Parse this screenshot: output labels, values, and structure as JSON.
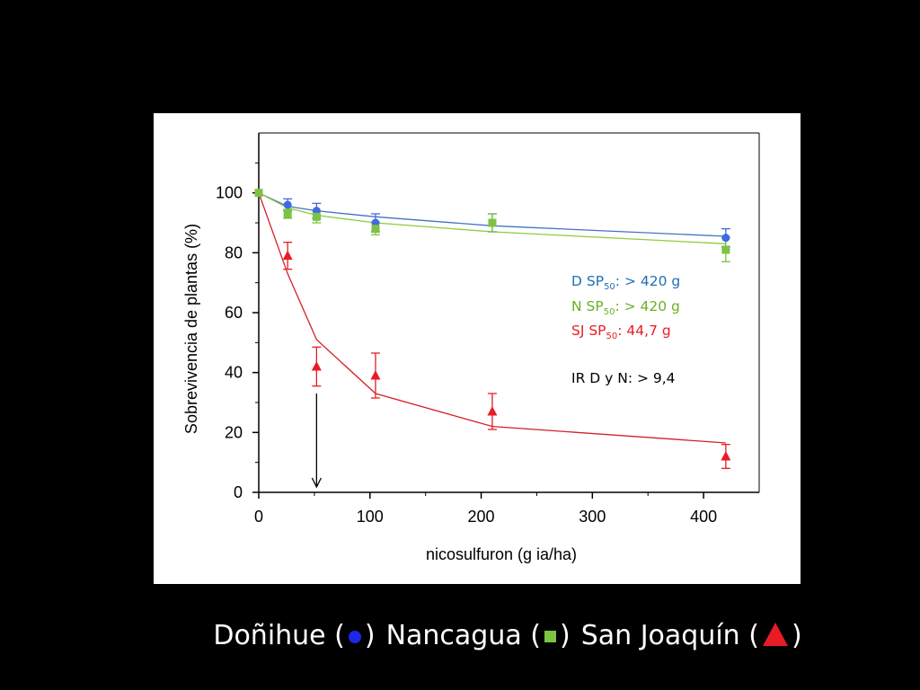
{
  "chart_data": {
    "type": "scatter",
    "title": "",
    "xlabel": "nicosulfuron (g ia/ha)",
    "ylabel": "Sobrevivencia de plantas (%)",
    "xlim": [
      0,
      450
    ],
    "ylim": [
      0,
      120
    ],
    "xticks": [
      0,
      100,
      200,
      300,
      400
    ],
    "yticks": [
      0,
      20,
      40,
      60,
      80,
      100
    ],
    "grid": false,
    "legend": "bottom",
    "series": [
      {
        "name": "Doñihue",
        "marker": "circle",
        "color": "#4169e1",
        "line_color": "#4472c4",
        "x": [
          0,
          26,
          52,
          105,
          210,
          420
        ],
        "y": [
          100,
          96,
          94,
          90,
          90,
          85
        ],
        "err": [
          0,
          2,
          2.5,
          3,
          3,
          3
        ],
        "fit_x": [
          0,
          26,
          52,
          105,
          210,
          420
        ],
        "fit_y": [
          100,
          95.5,
          94,
          92,
          89,
          85.5
        ]
      },
      {
        "name": "Nancagua",
        "marker": "square",
        "color": "#7dc241",
        "line_color": "#8ccc3c",
        "x": [
          0,
          26,
          52,
          105,
          210,
          420
        ],
        "y": [
          100,
          93,
          92,
          88,
          90,
          81
        ],
        "err": [
          0,
          1.5,
          2,
          2,
          3,
          4
        ],
        "fit_x": [
          0,
          26,
          52,
          105,
          210,
          420
        ],
        "fit_y": [
          100,
          95,
          92.5,
          90,
          87,
          83
        ]
      },
      {
        "name": "San Joaquín",
        "marker": "triangle",
        "color": "#e81c24",
        "line_color": "#d42027",
        "x": [
          26,
          52,
          105,
          210,
          420
        ],
        "y": [
          79,
          42,
          39,
          27,
          12
        ],
        "err": [
          4.5,
          6.5,
          7.5,
          6,
          4
        ],
        "fit_x": [
          0,
          26,
          52,
          105,
          210,
          420
        ],
        "fit_y": [
          100,
          73,
          51,
          33,
          22,
          16.5
        ]
      }
    ],
    "arrow": {
      "x": 52,
      "y_from": 33,
      "y_to": 0
    },
    "annotations": [
      {
        "prefix": "D SP",
        "sub": "50",
        "suffix": ": > 420 g",
        "color": "#1f6fb4"
      },
      {
        "prefix": "N  SP",
        "sub": "50",
        "suffix": ": > 420 g",
        "color": "#6ab023"
      },
      {
        "prefix": "SJ SP",
        "sub": "50",
        "suffix": ": 44,7 g",
        "color": "#e81c24"
      },
      {
        "prefix": "IR D y N: > 9,4",
        "sub": "",
        "suffix": "",
        "color": "#000000"
      }
    ]
  },
  "legend_caption": {
    "items": [
      {
        "label_before": "Doñihue (",
        "label_after": ")",
        "symbol": "circle",
        "color": "#1c29e8"
      },
      {
        "label_before": "Nancagua (",
        "label_after": ")",
        "symbol": "square",
        "color": "#7dc241"
      },
      {
        "label_before": "San Joaquín (",
        "label_after": ")",
        "symbol": "triangle",
        "color": "#e81c24"
      }
    ]
  }
}
